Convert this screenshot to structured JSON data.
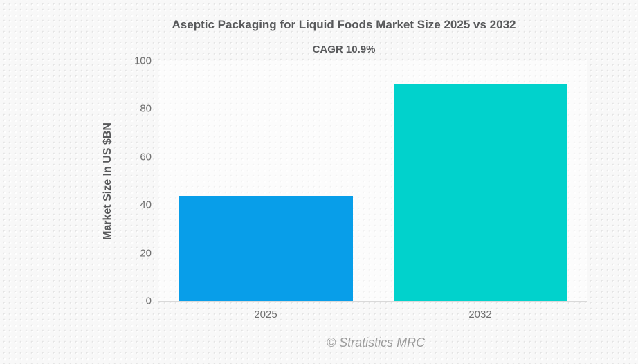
{
  "title": "Aseptic Packaging for Liquid Foods Market Size 2025 vs 2032",
  "subtitle": "CAGR 10.9%",
  "footer": "© Stratistics MRC",
  "chart_data": {
    "type": "bar",
    "title": "Aseptic Packaging for Liquid Foods Market Size 2025 vs 2032",
    "subtitle": "CAGR 10.9%",
    "categories": [
      "2025",
      "2032"
    ],
    "values": [
      43.8,
      90.2
    ],
    "xlabel": "",
    "ylabel": "Market Size In US $BN",
    "ylim": [
      0,
      100
    ],
    "yticks": [
      0,
      20,
      40,
      60,
      80,
      100
    ],
    "grid": false,
    "legend": false,
    "bar_colors": [
      "#089ee9",
      "#01d2cc"
    ],
    "axis_color": "#d9d9d9",
    "text_color": "#58595b",
    "tick_color": "#6f6f6f",
    "watermark_color": "#9c9c9c"
  }
}
